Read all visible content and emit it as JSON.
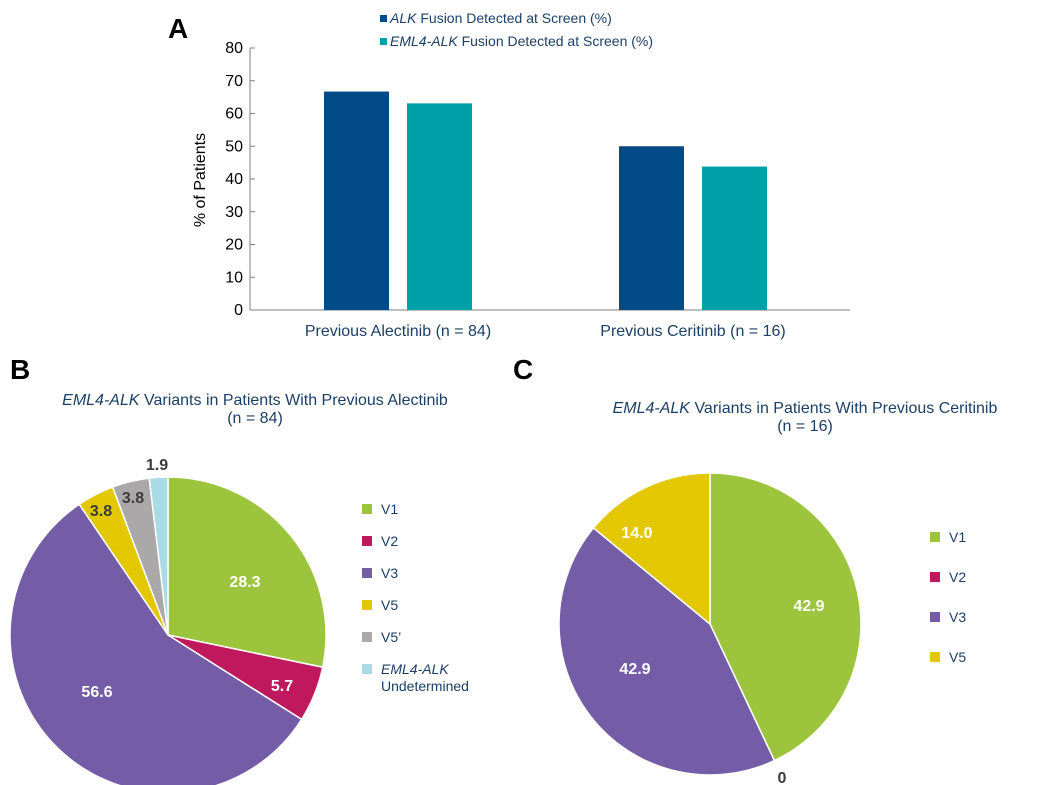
{
  "panels": {
    "a": "A",
    "b": "B",
    "c": "C"
  },
  "chart_data": [
    {
      "type": "bar",
      "categories": [
        "Previous Alectinib (n = 84)",
        "Previous Ceritinib (n = 16)"
      ],
      "series": [
        {
          "name": "Fusion Detected at Screen (%)",
          "name_prefix": "ALK",
          "color": "#004a87",
          "values": [
            66.7,
            50.0
          ]
        },
        {
          "name": "Fusion Detected at Screen (%)",
          "name_prefix": "EML4-ALK",
          "color": "#00a0a8",
          "values": [
            63.1,
            43.8
          ]
        }
      ],
      "ylabel": "% of Patients",
      "ylim": [
        0,
        80
      ],
      "yticks": [
        "0",
        "10",
        "20",
        "30",
        "40",
        "50",
        "60",
        "70",
        "80"
      ],
      "legend_position": "top"
    },
    {
      "type": "pie",
      "title_prefix": "EML4-ALK",
      "title": "Variants in Patients With Previous Alectinib",
      "subtitle": "(n = 84)",
      "slices": [
        {
          "label": "V1",
          "value": 28.3,
          "display": "28.3",
          "color": "#9cc43d"
        },
        {
          "label": "V2",
          "value": 5.7,
          "display": "5.7",
          "color": "#c0185c"
        },
        {
          "label": "V3",
          "value": 56.6,
          "display": "56.6",
          "color": "#745ca6"
        },
        {
          "label": "V5",
          "value": 3.8,
          "display": "3.8",
          "color": "#e3c700"
        },
        {
          "label": "V5’",
          "value": 3.8,
          "display": "3.8",
          "color": "#aaa8a8"
        },
        {
          "label": "Undetermined",
          "label_prefix": "EML4-ALK",
          "value": 1.9,
          "display": "1.9",
          "color": "#a8dbe4"
        }
      ],
      "legend_position": "right"
    },
    {
      "type": "pie",
      "title_prefix": "EML4-ALK",
      "title": "Variants in Patients With Previous Ceritinib",
      "subtitle": "(n = 16)",
      "slices": [
        {
          "label": "V1",
          "value": 42.9,
          "display": "42.9",
          "color": "#9cc43d"
        },
        {
          "label": "V2",
          "value": 0,
          "display": "0",
          "color": "#c0185c"
        },
        {
          "label": "V3",
          "value": 42.9,
          "display": "42.9",
          "color": "#745ca6"
        },
        {
          "label": "V5",
          "value": 14.0,
          "display": "14.0",
          "color": "#e3c700"
        }
      ],
      "legend_position": "right"
    }
  ]
}
